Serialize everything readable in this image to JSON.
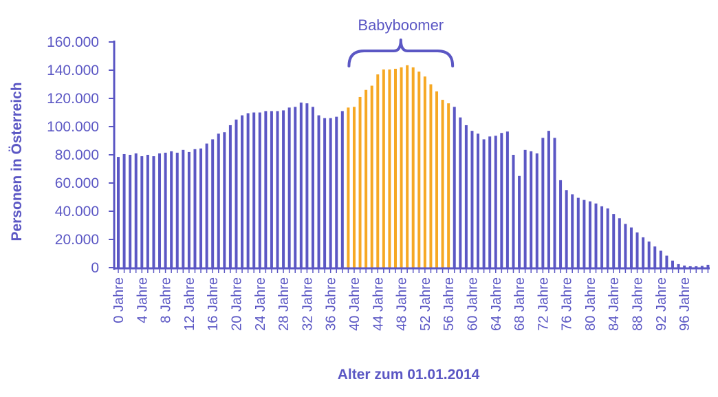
{
  "chart_data": {
    "type": "bar",
    "xlabel": "Alter zum 01.01.2014",
    "ylabel": "Personen in Österreich",
    "ylim": [
      0,
      160000
    ],
    "yticks": [
      0,
      20000,
      40000,
      60000,
      80000,
      100000,
      120000,
      140000,
      160000
    ],
    "ytick_labels": [
      "0",
      "20.000",
      "40.000",
      "60.000",
      "80.000",
      "100.000",
      "120.000",
      "140.000",
      "160.000"
    ],
    "tick_label_ages": [
      0,
      4,
      8,
      12,
      16,
      20,
      24,
      28,
      32,
      36,
      40,
      44,
      48,
      52,
      56,
      60,
      64,
      68,
      72,
      76,
      80,
      84,
      88,
      92,
      96
    ],
    "tick_label_suffix": "Jahre",
    "grid": false,
    "ages": [
      0,
      1,
      2,
      3,
      4,
      5,
      6,
      7,
      8,
      9,
      10,
      11,
      12,
      13,
      14,
      15,
      16,
      17,
      18,
      19,
      20,
      21,
      22,
      23,
      24,
      25,
      26,
      27,
      28,
      29,
      30,
      31,
      32,
      33,
      34,
      35,
      36,
      37,
      38,
      39,
      40,
      41,
      42,
      43,
      44,
      45,
      46,
      47,
      48,
      49,
      50,
      51,
      52,
      53,
      54,
      55,
      56,
      57,
      58,
      59,
      60,
      61,
      62,
      63,
      64,
      65,
      66,
      67,
      68,
      69,
      70,
      71,
      72,
      73,
      74,
      75,
      76,
      77,
      78,
      79,
      80,
      81,
      82,
      83,
      84,
      85,
      86,
      87,
      88,
      89,
      90,
      91,
      92,
      93,
      94,
      95,
      96,
      97,
      98,
      99,
      100
    ],
    "values": [
      78500,
      80500,
      80000,
      81000,
      79000,
      80000,
      79000,
      81000,
      81500,
      82500,
      81500,
      83500,
      82000,
      84000,
      84500,
      88000,
      91000,
      95000,
      96000,
      101000,
      105000,
      108000,
      109500,
      110000,
      110000,
      111000,
      111000,
      111000,
      111500,
      113500,
      114000,
      117000,
      116500,
      114000,
      108000,
      106000,
      106000,
      107000,
      111000,
      113500,
      114000,
      121000,
      126000,
      129000,
      137000,
      140500,
      140500,
      141000,
      142000,
      143500,
      142000,
      139000,
      135500,
      130000,
      125000,
      119000,
      116500,
      114000,
      106500,
      101000,
      97000,
      95000,
      91000,
      93000,
      93500,
      95500,
      96500,
      80000,
      65000,
      83500,
      82500,
      81000,
      92000,
      97000,
      92000,
      62000,
      55000,
      52000,
      49500,
      48000,
      47000,
      45500,
      43500,
      42000,
      38000,
      35000,
      31000,
      28500,
      25000,
      21500,
      18500,
      15000,
      12000,
      8500,
      5000,
      2500,
      1500,
      1000,
      1000,
      1200,
      2000
    ],
    "series": [
      {
        "ages_from": 0,
        "ages_to": 38,
        "color": "#5b57c4"
      },
      {
        "name": "Babyboomer",
        "ages_from": 39,
        "ages_to": 56,
        "color": "#f6a823"
      },
      {
        "ages_from": 57,
        "ages_to": 100,
        "color": "#5b57c4"
      }
    ],
    "annotation": {
      "text": "Babyboomer",
      "ages_from": 39,
      "ages_to": 56
    }
  }
}
